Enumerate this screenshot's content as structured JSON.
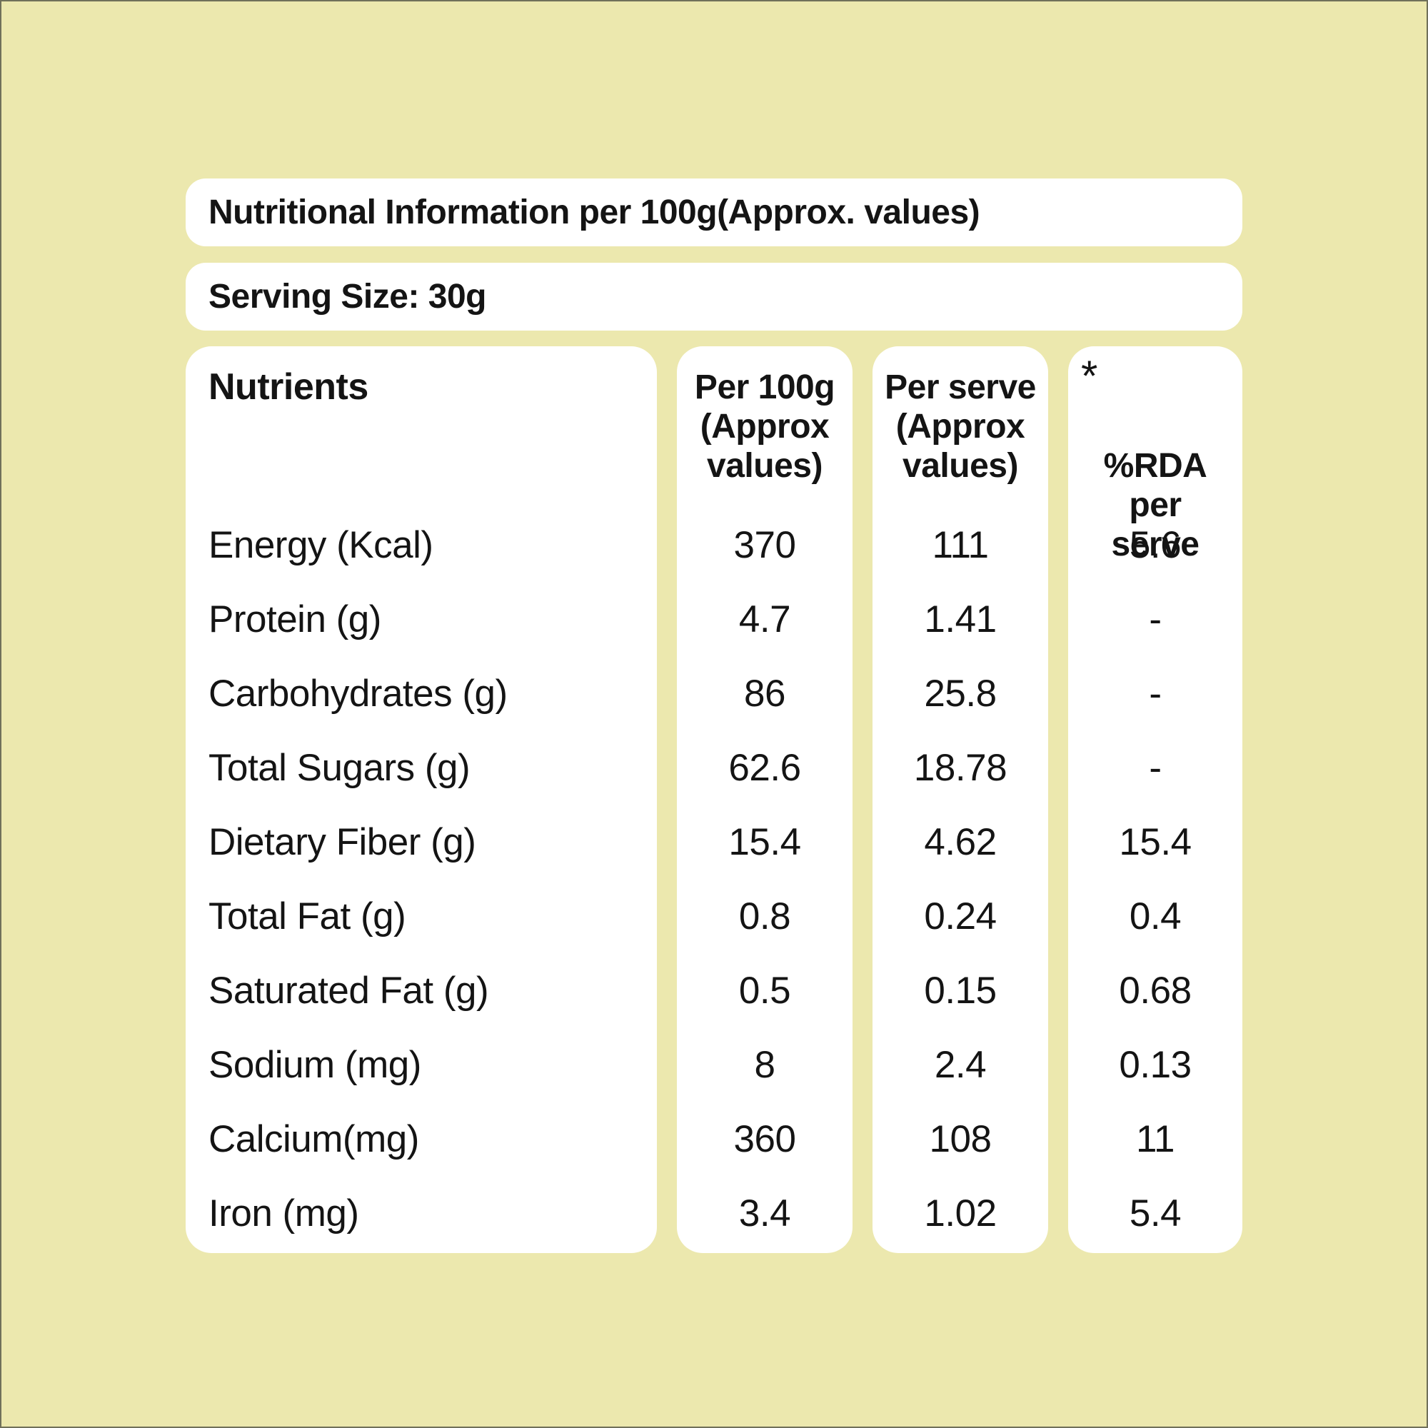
{
  "colors": {
    "background": "#ece8ae",
    "panel": "#ffffff",
    "text": "#141414",
    "edge_border": "#70705a"
  },
  "title_bar": {
    "text": "Nutritional Information per 100g(Approx. values)"
  },
  "serving_bar": {
    "text": "Serving Size: 30g"
  },
  "table": {
    "nutrients_header": "Nutrients",
    "value_columns": [
      {
        "label": "Per 100g\n(Approx\nvalues)"
      },
      {
        "label": "Per serve\n(Approx\nvalues)"
      },
      {
        "asterisk": "*",
        "label": "%RDA\nper\nserve"
      }
    ],
    "rows": [
      {
        "nutrient": "Energy (Kcal)",
        "per_100g": "370",
        "per_serve": "111",
        "rda": "5.6"
      },
      {
        "nutrient": "Protein (g)",
        "per_100g": "4.7",
        "per_serve": "1.41",
        "rda": "-"
      },
      {
        "nutrient": "Carbohydrates (g)",
        "per_100g": "86",
        "per_serve": "25.8",
        "rda": "-"
      },
      {
        "nutrient": "Total Sugars (g)",
        "per_100g": "62.6",
        "per_serve": "18.78",
        "rda": "-"
      },
      {
        "nutrient": "Dietary Fiber (g)",
        "per_100g": "15.4",
        "per_serve": "4.62",
        "rda": "15.4"
      },
      {
        "nutrient": "Total Fat (g)",
        "per_100g": "0.8",
        "per_serve": "0.24",
        "rda": "0.4"
      },
      {
        "nutrient": "Saturated Fat (g)",
        "per_100g": "0.5",
        "per_serve": "0.15",
        "rda": "0.68"
      },
      {
        "nutrient": "Sodium (mg)",
        "per_100g": "8",
        "per_serve": "2.4",
        "rda": "0.13"
      },
      {
        "nutrient": "Calcium(mg)",
        "per_100g": "360",
        "per_serve": "108",
        "rda": "11"
      },
      {
        "nutrient": "Iron (mg)",
        "per_100g": "3.4",
        "per_serve": "1.02",
        "rda": "5.4"
      }
    ]
  }
}
